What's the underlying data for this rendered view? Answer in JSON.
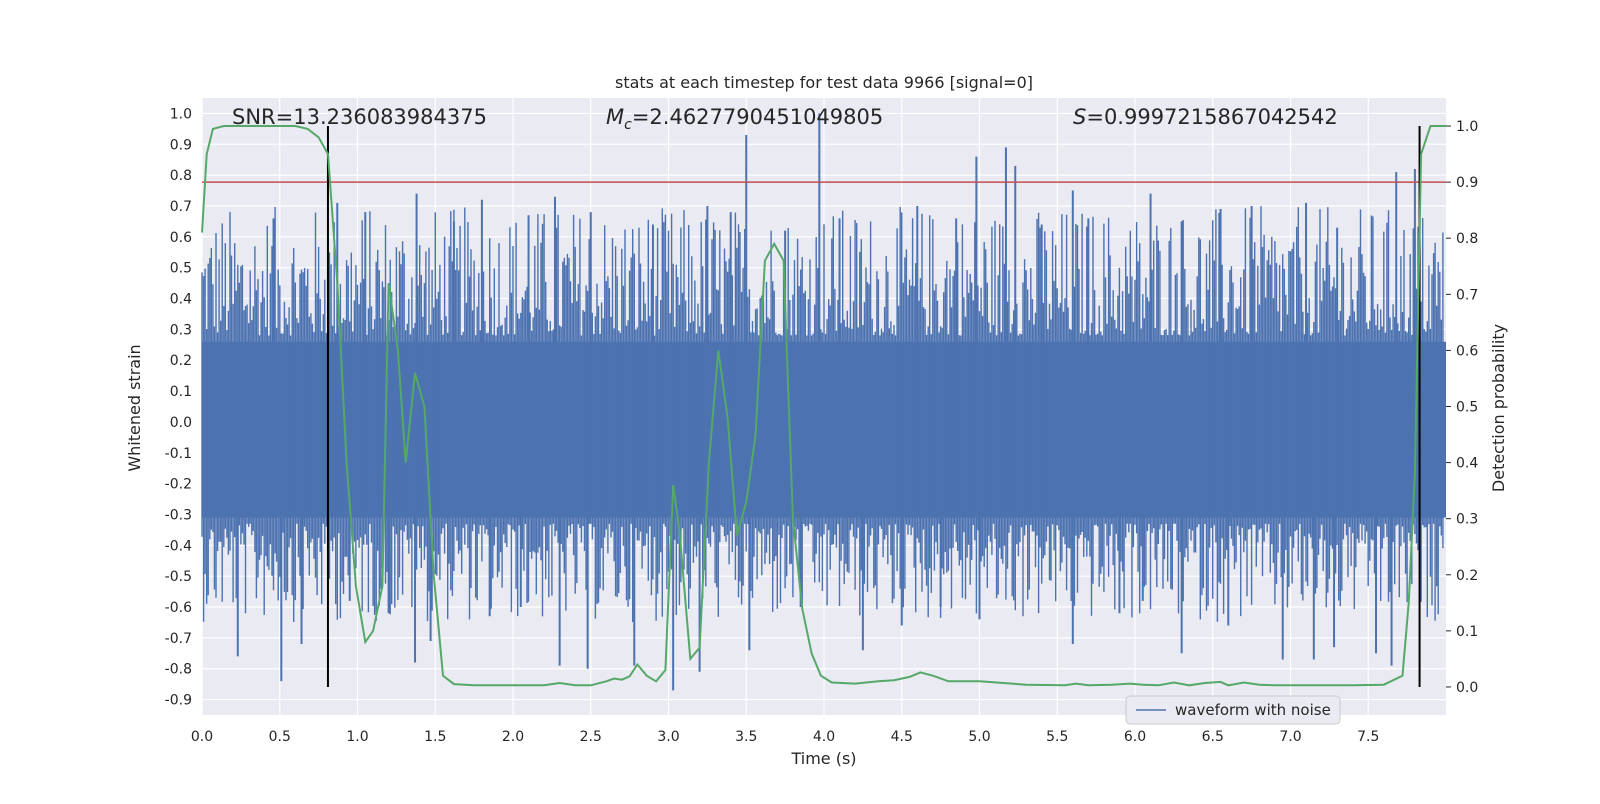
{
  "chart_data": {
    "type": "line",
    "title": "stats at each timestep for test data 9966 [signal=0]",
    "xlabel": "Time (s)",
    "ylabel": "Whitened strain",
    "y2label": "Detection probability",
    "xlim": [
      0.0,
      8.0
    ],
    "ylim": [
      -0.95,
      1.05
    ],
    "y2lim": [
      -0.05,
      1.05
    ],
    "xticks": [
      "0.0",
      "0.5",
      "1.0",
      "1.5",
      "2.0",
      "2.5",
      "3.0",
      "3.5",
      "4.0",
      "4.5",
      "5.0",
      "5.5",
      "6.0",
      "6.5",
      "7.0",
      "7.5"
    ],
    "yticks": [
      "1.0",
      "0.9",
      "0.8",
      "0.7",
      "0.6",
      "0.5",
      "0.4",
      "0.3",
      "0.2",
      "0.1",
      "0.0",
      "-0.1",
      "-0.2",
      "-0.3",
      "-0.4",
      "-0.5",
      "-0.6",
      "-0.7",
      "-0.8",
      "-0.9"
    ],
    "y2ticks": [
      "1.0",
      "0.9",
      "0.8",
      "0.7",
      "0.6",
      "0.5",
      "0.4",
      "0.3",
      "0.2",
      "0.1",
      "0.0"
    ],
    "annotations": {
      "snr": "SNR=13.236083984375",
      "mc_symbol": "M",
      "mc_sub": "c",
      "mc_value": "=2.4627790451049805",
      "s_symbol": "S",
      "s_value": "=0.9997215867042542"
    },
    "threshold_y2": 0.9,
    "vertical_markers_x": [
      0.81,
      7.83
    ],
    "grid": true,
    "legend": {
      "placement": "lower-right",
      "label": "waveform with noise"
    },
    "colors": {
      "waveform": "#4c72b0",
      "probability": "#55a868",
      "threshold": "#c44e52",
      "marker": "#000000",
      "background": "#eaeaf2"
    },
    "series": [
      {
        "name": "waveform with noise",
        "core_band": [
          -0.31,
          0.26
        ],
        "upper_spikes": [
          [
            3.5,
            0.93
          ],
          [
            3.97,
            1.0
          ],
          [
            4.98,
            0.86
          ],
          [
            5.17,
            0.89
          ],
          [
            5.23,
            0.83
          ],
          [
            7.68,
            0.81
          ],
          [
            7.8,
            0.82
          ],
          [
            1.38,
            0.74
          ],
          [
            5.6,
            0.75
          ],
          [
            2.27,
            0.73
          ],
          [
            6.1,
            0.74
          ],
          [
            0.87,
            0.71
          ],
          [
            1.8,
            0.72
          ],
          [
            3.25,
            0.7
          ],
          [
            4.6,
            0.7
          ],
          [
            7.1,
            0.71
          ],
          [
            2.5,
            0.68
          ],
          [
            6.55,
            0.69
          ],
          [
            1.05,
            0.68
          ],
          [
            2.1,
            0.67
          ],
          [
            3.4,
            0.68
          ],
          [
            5.7,
            0.66
          ],
          [
            6.75,
            0.7
          ],
          [
            4.1,
            0.66
          ],
          [
            0.46,
            0.66
          ],
          [
            1.62,
            0.65
          ],
          [
            2.9,
            0.64
          ],
          [
            3.75,
            0.62
          ],
          [
            4.85,
            0.66
          ],
          [
            6.3,
            0.65
          ],
          [
            7.3,
            0.63
          ],
          [
            5.4,
            0.64
          ]
        ],
        "lower_spikes": [
          [
            3.03,
            -0.87
          ],
          [
            0.51,
            -0.84
          ],
          [
            0.23,
            -0.76
          ],
          [
            1.37,
            -0.78
          ],
          [
            1.47,
            -0.71
          ],
          [
            0.64,
            -0.72
          ],
          [
            2.3,
            -0.79
          ],
          [
            2.48,
            -0.8
          ],
          [
            2.78,
            -0.79
          ],
          [
            3.2,
            -0.81
          ],
          [
            3.52,
            -0.74
          ],
          [
            4.25,
            -0.74
          ],
          [
            5.6,
            -0.72
          ],
          [
            6.3,
            -0.75
          ],
          [
            6.95,
            -0.77
          ],
          [
            7.15,
            -0.77
          ],
          [
            7.28,
            -0.73
          ],
          [
            7.55,
            -0.75
          ],
          [
            7.65,
            -0.79
          ],
          [
            1.85,
            -0.63
          ],
          [
            4.5,
            -0.66
          ],
          [
            5.0,
            -0.64
          ],
          [
            5.9,
            -0.62
          ],
          [
            6.6,
            -0.66
          ],
          [
            2.05,
            -0.6
          ],
          [
            1.2,
            -0.62
          ],
          [
            0.95,
            -0.58
          ],
          [
            3.85,
            -0.6
          ],
          [
            4.75,
            -0.6
          ],
          [
            6.05,
            -0.58
          ]
        ]
      },
      {
        "name": "",
        "axis": "right",
        "x": [
          0.0,
          0.03,
          0.07,
          0.14,
          0.2,
          0.3,
          0.4,
          0.5,
          0.6,
          0.68,
          0.75,
          0.81,
          0.87,
          0.93,
          0.99,
          1.05,
          1.1,
          1.16,
          1.2,
          1.26,
          1.31,
          1.37,
          1.43,
          1.49,
          1.55,
          1.62,
          1.75,
          2.0,
          2.2,
          2.3,
          2.4,
          2.5,
          2.6,
          2.65,
          2.7,
          2.75,
          2.8,
          2.86,
          2.92,
          2.98,
          3.03,
          3.07,
          3.14,
          3.2,
          3.26,
          3.32,
          3.38,
          3.44,
          3.5,
          3.56,
          3.62,
          3.68,
          3.74,
          3.8,
          3.86,
          3.92,
          3.98,
          4.05,
          4.2,
          4.35,
          4.45,
          4.55,
          4.62,
          4.7,
          4.8,
          5.0,
          5.3,
          5.55,
          5.62,
          5.7,
          5.85,
          5.97,
          6.05,
          6.15,
          6.25,
          6.35,
          6.45,
          6.55,
          6.6,
          6.7,
          6.8,
          6.9,
          7.0,
          7.2,
          7.4,
          7.6,
          7.72,
          7.76,
          7.8,
          7.84,
          7.9,
          7.95,
          8.0
        ],
        "y": [
          0.81,
          0.95,
          0.995,
          1.0,
          1.0,
          1.0,
          1.0,
          1.0,
          1.0,
          0.995,
          0.98,
          0.95,
          0.72,
          0.4,
          0.18,
          0.08,
          0.1,
          0.18,
          0.72,
          0.6,
          0.4,
          0.56,
          0.5,
          0.2,
          0.02,
          0.005,
          0.003,
          0.003,
          0.003,
          0.007,
          0.003,
          0.003,
          0.01,
          0.015,
          0.013,
          0.019,
          0.04,
          0.02,
          0.01,
          0.03,
          0.36,
          0.28,
          0.05,
          0.07,
          0.4,
          0.6,
          0.48,
          0.27,
          0.33,
          0.45,
          0.76,
          0.79,
          0.76,
          0.3,
          0.14,
          0.06,
          0.02,
          0.008,
          0.006,
          0.01,
          0.012,
          0.018,
          0.026,
          0.02,
          0.01,
          0.01,
          0.004,
          0.003,
          0.006,
          0.003,
          0.004,
          0.006,
          0.004,
          0.003,
          0.008,
          0.003,
          0.007,
          0.009,
          0.003,
          0.008,
          0.004,
          0.003,
          0.003,
          0.003,
          0.003,
          0.004,
          0.02,
          0.15,
          0.38,
          0.95,
          1.0,
          1.0,
          1.0
        ]
      }
    ]
  }
}
